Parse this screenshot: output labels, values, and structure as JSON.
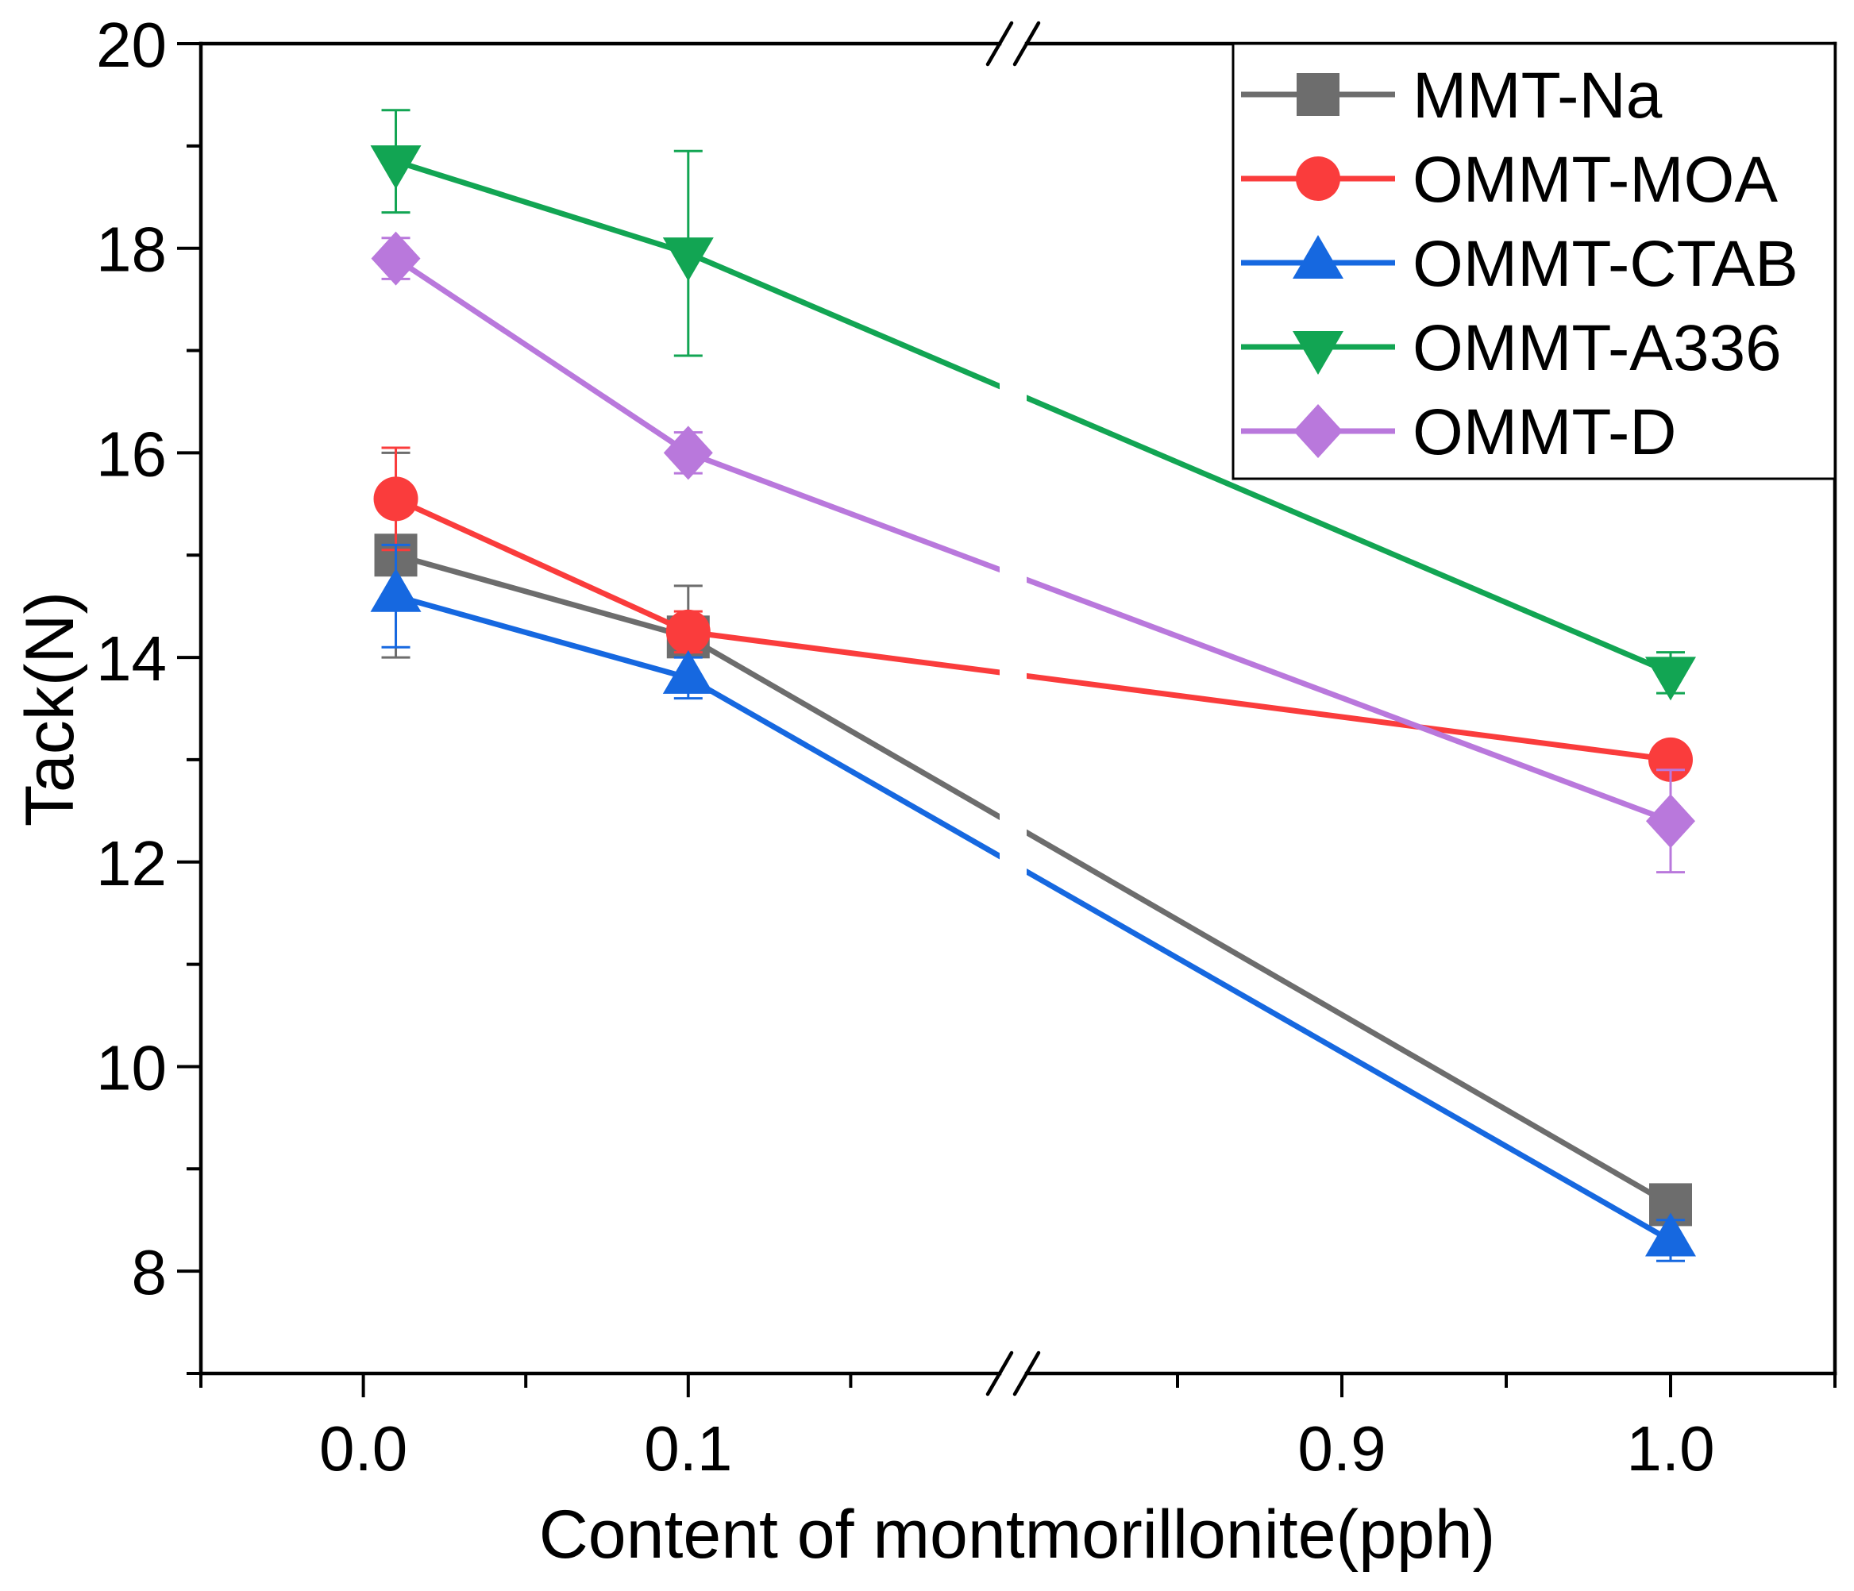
{
  "chart_data": {
    "type": "line",
    "xlabel": "Content of montmorillonite(pph)",
    "ylabel": "Tack(N)",
    "ylim": [
      7,
      20
    ],
    "yticks": [
      8,
      10,
      12,
      14,
      16,
      18,
      20
    ],
    "yminor": [
      7,
      9,
      11,
      13,
      15,
      17,
      19
    ],
    "x_segments": [
      [
        -0.05,
        0.2
      ],
      [
        0.8,
        1.05
      ]
    ],
    "axis_break": true,
    "xticks": [
      {
        "value": 0.0,
        "label": "0.0"
      },
      {
        "value": 0.1,
        "label": "0.1"
      },
      {
        "value": 0.9,
        "label": "0.9"
      },
      {
        "value": 1.0,
        "label": "1.0"
      }
    ],
    "xminor": [
      -0.05,
      0.05,
      0.15,
      0.85,
      0.95,
      1.05
    ],
    "grid": false,
    "legend": "top-right",
    "x": [
      0.01,
      0.1,
      1.0
    ],
    "series": [
      {
        "name": "MMT-Na",
        "color": "#6d6d6d",
        "marker": "square",
        "values": [
          15.0,
          14.2,
          8.65
        ],
        "errors": [
          1.0,
          0.5,
          0.1
        ]
      },
      {
        "name": "OMMT-MOA",
        "color": "#fa3c3c",
        "marker": "circle",
        "values": [
          15.55,
          14.25,
          13.0
        ],
        "errors": [
          0.5,
          0.2,
          0.15
        ]
      },
      {
        "name": "OMMT-CTAB",
        "color": "#1668e0",
        "marker": "triangle-up",
        "values": [
          14.6,
          13.8,
          8.3
        ],
        "errors": [
          0.5,
          0.2,
          0.2
        ]
      },
      {
        "name": "OMMT-A336",
        "color": "#12a553",
        "marker": "triangle-down",
        "values": [
          18.85,
          17.95,
          13.85
        ],
        "errors": [
          0.5,
          1.0,
          0.2
        ]
      },
      {
        "name": "OMMT-D",
        "color": "#b978dc",
        "marker": "diamond",
        "values": [
          17.9,
          16.0,
          12.4
        ],
        "errors": [
          0.2,
          0.2,
          0.5
        ]
      }
    ]
  }
}
